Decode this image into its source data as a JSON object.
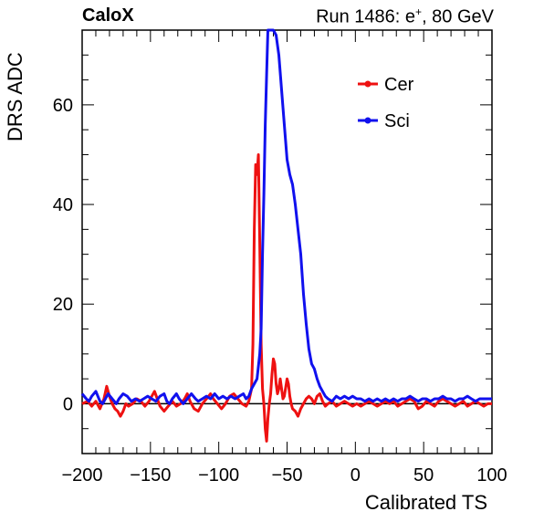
{
  "header": {
    "experiment": "CaloX",
    "run_prefix": "Run 1486: e",
    "run_sup": "+",
    "run_suffix": ", 80 GeV"
  },
  "chart_data": {
    "type": "line",
    "xlabel": "Calibrated TS",
    "ylabel": "DRS ADC",
    "xlim": [
      -200,
      100
    ],
    "ylim": [
      -10,
      75
    ],
    "xticks": [
      -200,
      -150,
      -100,
      -50,
      0,
      50,
      100
    ],
    "yticks": [
      0,
      20,
      40,
      60
    ],
    "legend_position": "top-right",
    "zero_line": true,
    "series": [
      {
        "name": "Cer",
        "color": "#ee1111",
        "points": [
          [
            -200,
            0
          ],
          [
            -196,
            0.5
          ],
          [
            -193,
            -0.5
          ],
          [
            -190,
            0.5
          ],
          [
            -187,
            -1
          ],
          [
            -184,
            1
          ],
          [
            -182,
            3.5
          ],
          [
            -180,
            1.5
          ],
          [
            -178,
            0
          ],
          [
            -176,
            -1
          ],
          [
            -174,
            -1.5
          ],
          [
            -172,
            -2.5
          ],
          [
            -170,
            -1.5
          ],
          [
            -168,
            0
          ],
          [
            -166,
            -0.5
          ],
          [
            -163,
            0
          ],
          [
            -160,
            1
          ],
          [
            -157,
            0.5
          ],
          [
            -154,
            -0.5
          ],
          [
            -151,
            0.5
          ],
          [
            -149,
            1.5
          ],
          [
            -147,
            2.5
          ],
          [
            -145,
            1
          ],
          [
            -143,
            -0.5
          ],
          [
            -140,
            -1.5
          ],
          [
            -137,
            -0.5
          ],
          [
            -134,
            0.5
          ],
          [
            -131,
            -0.5
          ],
          [
            -128,
            0
          ],
          [
            -125,
            1
          ],
          [
            -123,
            2
          ],
          [
            -121,
            0.5
          ],
          [
            -118,
            -1
          ],
          [
            -115,
            -1.5
          ],
          [
            -112,
            0
          ],
          [
            -109,
            1
          ],
          [
            -106,
            2
          ],
          [
            -104,
            1
          ],
          [
            -101,
            0
          ],
          [
            -98,
            -1
          ],
          [
            -95,
            0
          ],
          [
            -92,
            1.5
          ],
          [
            -89,
            2
          ],
          [
            -86,
            1
          ],
          [
            -83,
            0
          ],
          [
            -80,
            -0.5
          ],
          [
            -78,
            0.5
          ],
          [
            -76,
            3
          ],
          [
            -75,
            12
          ],
          [
            -74,
            35
          ],
          [
            -73,
            48
          ],
          [
            -72,
            46
          ],
          [
            -71,
            50
          ],
          [
            -70,
            32
          ],
          [
            -69,
            12
          ],
          [
            -68,
            3
          ],
          [
            -67,
            0
          ],
          [
            -66,
            -5
          ],
          [
            -65,
            -7.5
          ],
          [
            -64,
            -3
          ],
          [
            -63,
            0
          ],
          [
            -62,
            2
          ],
          [
            -61,
            6
          ],
          [
            -60,
            9
          ],
          [
            -59,
            8
          ],
          [
            -58,
            4
          ],
          [
            -57,
            2
          ],
          [
            -56,
            3
          ],
          [
            -55,
            5
          ],
          [
            -54,
            3
          ],
          [
            -53,
            1
          ],
          [
            -52,
            1.5
          ],
          [
            -50,
            5
          ],
          [
            -49,
            4
          ],
          [
            -48,
            1.5
          ],
          [
            -47,
            0
          ],
          [
            -46,
            -1
          ],
          [
            -44,
            -1.5
          ],
          [
            -42,
            -2.5
          ],
          [
            -40,
            -1
          ],
          [
            -38,
            0
          ],
          [
            -36,
            1
          ],
          [
            -34,
            1.5
          ],
          [
            -32,
            1
          ],
          [
            -30,
            0
          ],
          [
            -28,
            1.5
          ],
          [
            -26,
            2
          ],
          [
            -24,
            0.5
          ],
          [
            -22,
            -0.5
          ],
          [
            -20,
            0
          ],
          [
            -17,
            0.5
          ],
          [
            -14,
            -0.5
          ],
          [
            -11,
            0
          ],
          [
            -8,
            0.5
          ],
          [
            -5,
            0
          ],
          [
            -2,
            -0.5
          ],
          [
            1,
            0
          ],
          [
            4,
            -0.5
          ],
          [
            7,
            0
          ],
          [
            10,
            0.5
          ],
          [
            13,
            0
          ],
          [
            16,
            -0.5
          ],
          [
            19,
            0
          ],
          [
            22,
            0.5
          ],
          [
            25,
            0
          ],
          [
            28,
            0.5
          ],
          [
            31,
            -0.5
          ],
          [
            34,
            0
          ],
          [
            37,
            0.5
          ],
          [
            40,
            1
          ],
          [
            43,
            0.5
          ],
          [
            46,
            -1
          ],
          [
            49,
            -0.5
          ],
          [
            52,
            0.5
          ],
          [
            55,
            0
          ],
          [
            58,
            -0.5
          ],
          [
            61,
            0.5
          ],
          [
            64,
            1
          ],
          [
            67,
            0.5
          ],
          [
            70,
            0
          ],
          [
            73,
            -0.5
          ],
          [
            76,
            0
          ],
          [
            79,
            0.5
          ],
          [
            82,
            -0.5
          ],
          [
            85,
            0
          ],
          [
            88,
            0.5
          ],
          [
            91,
            0
          ],
          [
            94,
            -0.5
          ],
          [
            97,
            0
          ],
          [
            100,
            0
          ]
        ]
      },
      {
        "name": "Sci",
        "color": "#1111ee",
        "points": [
          [
            -200,
            2
          ],
          [
            -197,
            1
          ],
          [
            -195,
            0.5
          ],
          [
            -193,
            1.5
          ],
          [
            -190,
            2.5
          ],
          [
            -187,
            0.5
          ],
          [
            -185,
            0
          ],
          [
            -183,
            1
          ],
          [
            -181,
            2
          ],
          [
            -178,
            1
          ],
          [
            -175,
            0
          ],
          [
            -173,
            1
          ],
          [
            -170,
            2
          ],
          [
            -167,
            1.5
          ],
          [
            -164,
            0.5
          ],
          [
            -161,
            1
          ],
          [
            -158,
            0.5
          ],
          [
            -155,
            1
          ],
          [
            -152,
            1.5
          ],
          [
            -149,
            1
          ],
          [
            -146,
            0.5
          ],
          [
            -143,
            1.5
          ],
          [
            -140,
            2
          ],
          [
            -138,
            0.5
          ],
          [
            -136,
            0
          ],
          [
            -134,
            1
          ],
          [
            -131,
            2
          ],
          [
            -129,
            1
          ],
          [
            -126,
            0
          ],
          [
            -123,
            1
          ],
          [
            -120,
            2
          ],
          [
            -117,
            1
          ],
          [
            -115,
            0.5
          ],
          [
            -112,
            1
          ],
          [
            -109,
            1.5
          ],
          [
            -106,
            1
          ],
          [
            -103,
            2
          ],
          [
            -100,
            1
          ],
          [
            -97,
            1.5
          ],
          [
            -94,
            1
          ],
          [
            -91,
            1.5
          ],
          [
            -88,
            1
          ],
          [
            -85,
            1.5
          ],
          [
            -82,
            2
          ],
          [
            -80,
            1
          ],
          [
            -78,
            1.5
          ],
          [
            -76,
            3
          ],
          [
            -74,
            4
          ],
          [
            -72,
            5
          ],
          [
            -70,
            10
          ],
          [
            -69,
            15
          ],
          [
            -68,
            30
          ],
          [
            -67,
            42
          ],
          [
            -66,
            56
          ],
          [
            -65,
            66
          ],
          [
            -64,
            75
          ],
          [
            -62,
            75
          ],
          [
            -60,
            75
          ],
          [
            -58,
            74
          ],
          [
            -56,
            70
          ],
          [
            -54,
            63
          ],
          [
            -52,
            56
          ],
          [
            -50,
            49
          ],
          [
            -48,
            46
          ],
          [
            -46,
            44
          ],
          [
            -44,
            40
          ],
          [
            -42,
            35
          ],
          [
            -40,
            30
          ],
          [
            -38,
            22
          ],
          [
            -36,
            16
          ],
          [
            -34,
            11
          ],
          [
            -32,
            8
          ],
          [
            -30,
            7
          ],
          [
            -28,
            5
          ],
          [
            -26,
            3.5
          ],
          [
            -24,
            2.5
          ],
          [
            -22,
            1.5
          ],
          [
            -20,
            1
          ],
          [
            -17,
            0.5
          ],
          [
            -14,
            1.5
          ],
          [
            -11,
            1
          ],
          [
            -8,
            1.5
          ],
          [
            -5,
            1
          ],
          [
            -2,
            1.5
          ],
          [
            1,
            1
          ],
          [
            4,
            1
          ],
          [
            7,
            0.5
          ],
          [
            10,
            1
          ],
          [
            13,
            0.5
          ],
          [
            16,
            1
          ],
          [
            19,
            0.5
          ],
          [
            22,
            1
          ],
          [
            25,
            0.5
          ],
          [
            28,
            1
          ],
          [
            31,
            0.5
          ],
          [
            34,
            1
          ],
          [
            37,
            1
          ],
          [
            40,
            1.5
          ],
          [
            43,
            1
          ],
          [
            46,
            0.5
          ],
          [
            49,
            1
          ],
          [
            52,
            1
          ],
          [
            55,
            0.5
          ],
          [
            58,
            1
          ],
          [
            61,
            1
          ],
          [
            64,
            1.5
          ],
          [
            67,
            1
          ],
          [
            70,
            1
          ],
          [
            73,
            0.5
          ],
          [
            76,
            1
          ],
          [
            79,
            1
          ],
          [
            82,
            1.5
          ],
          [
            85,
            1
          ],
          [
            88,
            0.5
          ],
          [
            91,
            1
          ],
          [
            94,
            1
          ],
          [
            97,
            1
          ],
          [
            100,
            1
          ]
        ]
      }
    ]
  }
}
